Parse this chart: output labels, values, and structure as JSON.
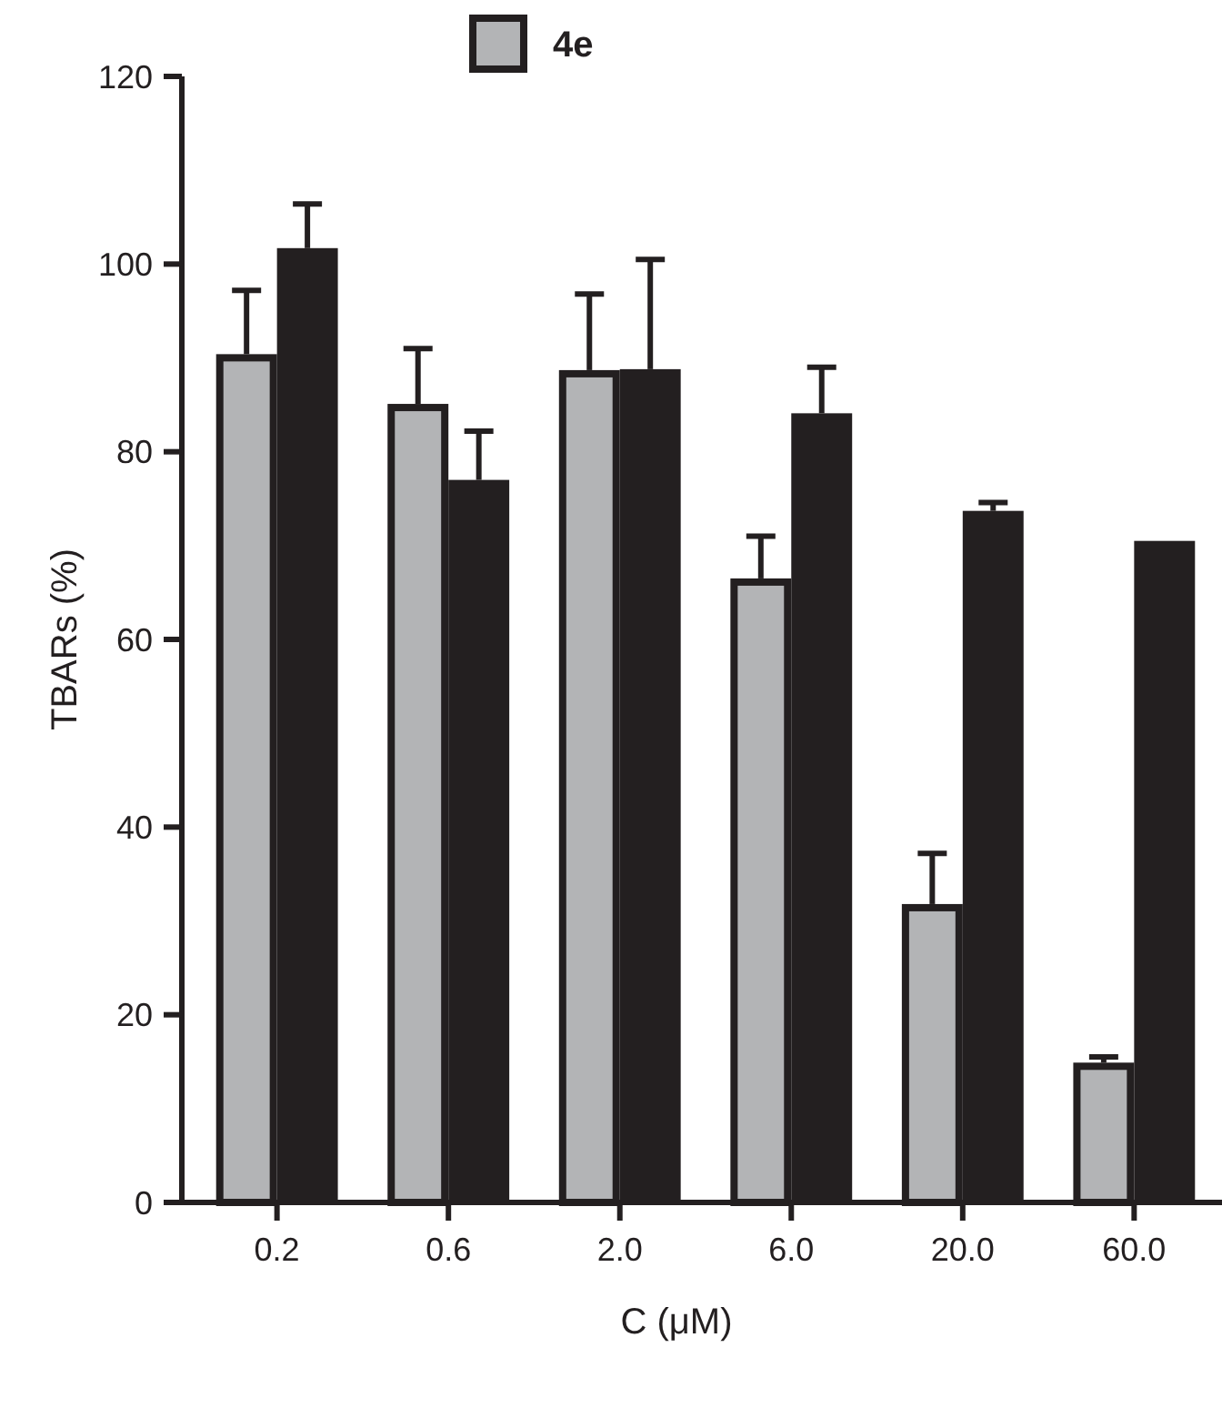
{
  "chart_data": {
    "type": "bar",
    "xlabel": "C (μM)",
    "ylabel": "TBARs (%)",
    "categories": [
      "0.2",
      "0.6",
      "2.0",
      "6.0",
      "20.0",
      "60.0"
    ],
    "series": [
      {
        "name": "4e",
        "color": "#b3b4b6",
        "values": [
          90.4,
          85.1,
          88.7,
          66.5,
          31.8,
          14.9
        ],
        "errors": [
          [
            90.4,
            97.2
          ],
          [
            85.1,
            91.0
          ],
          [
            88.7,
            96.8
          ],
          [
            66.5,
            71.0
          ],
          [
            31.8,
            37.2
          ],
          [
            14.9,
            15.5
          ]
        ]
      },
      {
        "color": "#231f20",
        "values": [
          101.7,
          77.0,
          88.8,
          84.1,
          73.7,
          70.5
        ],
        "errors": [
          [
            101.7,
            106.4
          ],
          [
            77.0,
            82.2
          ],
          [
            88.8,
            100.5
          ],
          [
            84.1,
            89.0
          ],
          [
            73.7,
            74.6
          ],
          null
        ]
      }
    ],
    "ylim": [
      0,
      120
    ],
    "yticks": [
      0,
      20,
      40,
      60,
      80,
      100,
      120
    ],
    "legend": "top",
    "grid": false
  }
}
